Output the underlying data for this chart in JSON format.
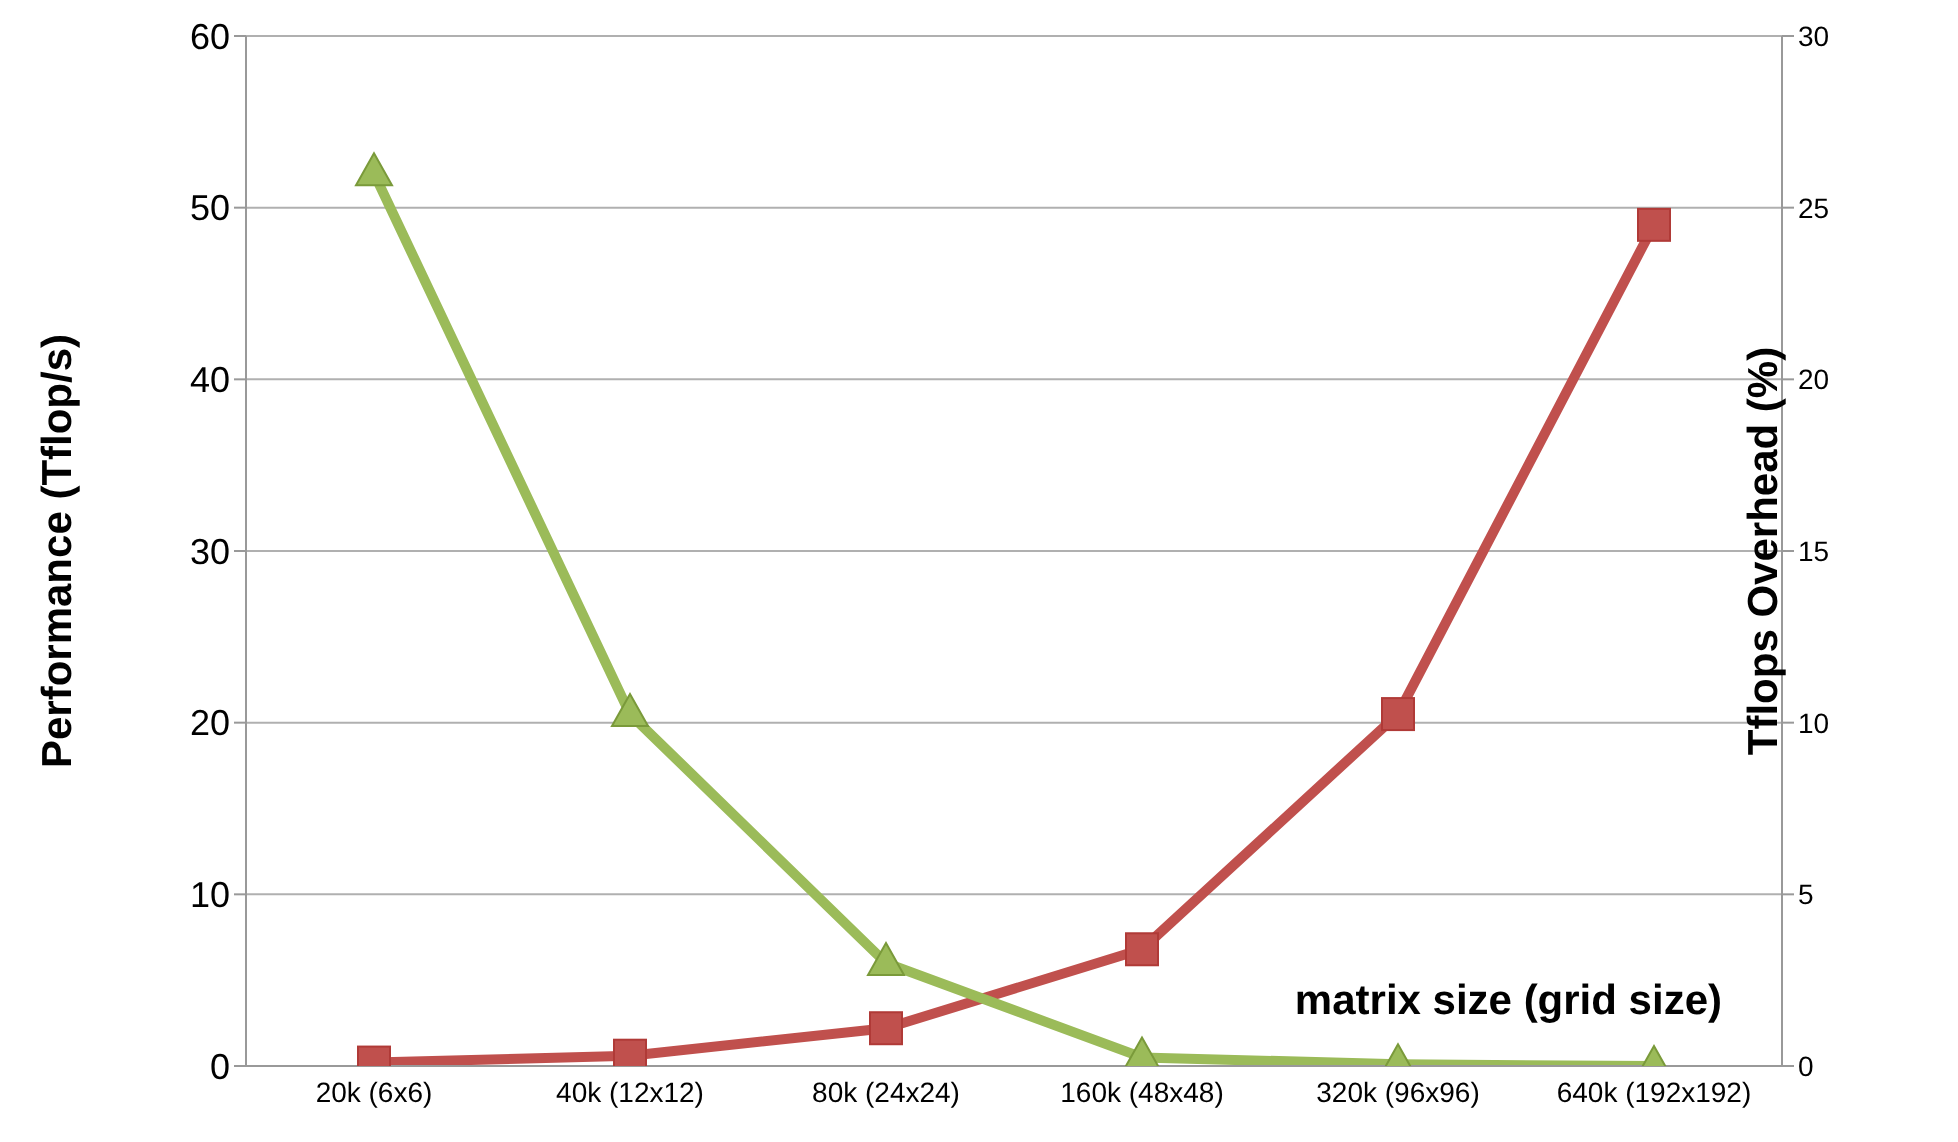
{
  "chart_data": {
    "type": "line",
    "xlabel": "matrix size (grid size)",
    "ylabel": "Performance (Tflop/s)",
    "y2label": "Tflops Overhead (%)",
    "categories": [
      "20k (6x6)",
      "40k (12x12)",
      "80k (24x24)",
      "160k (48x48)",
      "320k (96x96)",
      "640k (192x192)"
    ],
    "series": [
      {
        "color": "#c0504d",
        "marker": "square",
        "values": [
          0.2,
          0.6,
          2.2,
          6.8,
          20.5,
          49
        ]
      },
      {
        "color": "#9bbb59",
        "marker": "triangle",
        "axis": "y2",
        "values": [
          26,
          10.25,
          3,
          0.25,
          0.05,
          0
        ]
      }
    ],
    "ylim": [
      0,
      60
    ],
    "yticks": [
      0,
      10,
      20,
      30,
      40,
      50,
      60
    ],
    "y2lim": [
      0,
      30
    ],
    "y2ticks": [
      0,
      5,
      10,
      15,
      20,
      25,
      30
    ],
    "grid": "y",
    "legend": false,
    "line_style": "solid"
  }
}
